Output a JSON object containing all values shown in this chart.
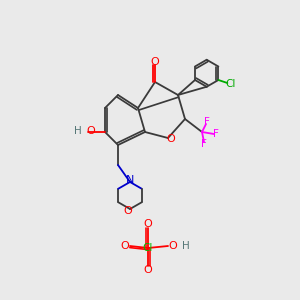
{
  "bg_color": "#eaeaea",
  "bond_color": "#3a3a3a",
  "colors": {
    "O": "#ff0000",
    "N": "#0000cc",
    "F": "#ff00ff",
    "Cl_green": "#00aa00",
    "Cl_perchlorate": "#00bb00",
    "H": "#557777",
    "C": "#3a3a3a"
  },
  "font_size": 7.5,
  "lw": 1.3
}
